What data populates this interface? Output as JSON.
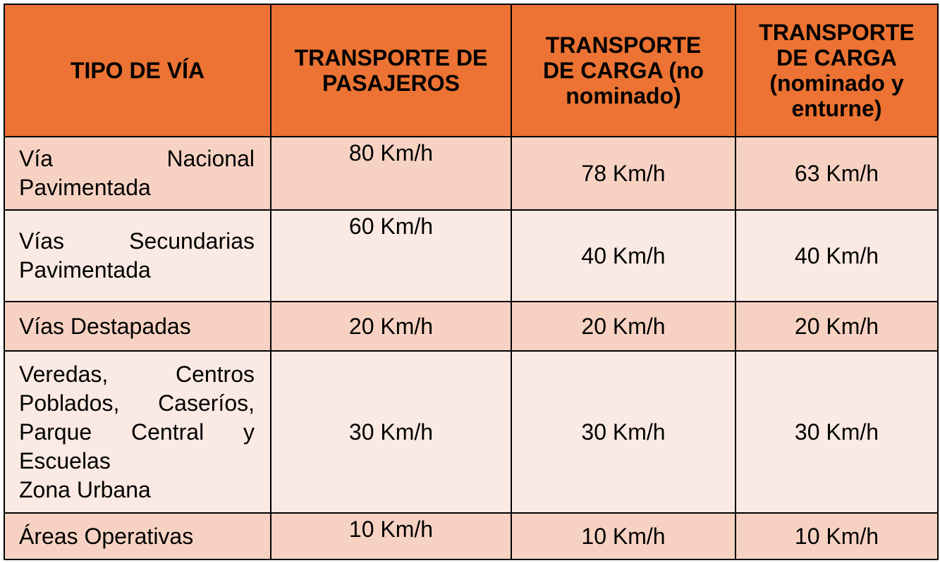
{
  "table": {
    "headers": [
      [
        "TIPO DE VÍA"
      ],
      [
        "TRANSPORTE DE",
        "PASAJEROS"
      ],
      [
        "TRANSPORTE",
        "DE CARGA (no",
        "nominado)"
      ],
      [
        "TRANSPORTE",
        "DE CARGA",
        "(nominado y",
        "enturne)"
      ]
    ],
    "rows": [
      {
        "tipo": [
          "Vía Nacional",
          "Pavimentada"
        ],
        "pasajeros": "80 Km/h",
        "carga_no_nominado": "78 Km/h",
        "carga_nominado": "63 Km/h"
      },
      {
        "tipo": [
          "Vías Secundarias",
          "Pavimentada"
        ],
        "pasajeros": "60 Km/h",
        "carga_no_nominado": "40 Km/h",
        "carga_nominado": "40 Km/h"
      },
      {
        "tipo": [
          "Vías Destapadas"
        ],
        "pasajeros": "20 Km/h",
        "carga_no_nominado": "20 Km/h",
        "carga_nominado": "20 Km/h"
      },
      {
        "tipo": [
          "Veredas, Centros",
          "Poblados, Caseríos,",
          "Parque Central y",
          "Escuelas",
          "Zona Urbana"
        ],
        "pasajeros": "30 Km/h",
        "carga_no_nominado": "30 Km/h",
        "carga_nominado": "30 Km/h"
      },
      {
        "tipo": [
          "Áreas Operativas"
        ],
        "pasajeros": "10 Km/h",
        "carga_no_nominado": "10 Km/h",
        "carga_nominado": "10 Km/h"
      }
    ]
  },
  "colors": {
    "header_bg": "#ec7333",
    "row_odd_bg": "#f7d2c3",
    "row_even_bg": "#fbe9e3",
    "border": "#000000"
  }
}
